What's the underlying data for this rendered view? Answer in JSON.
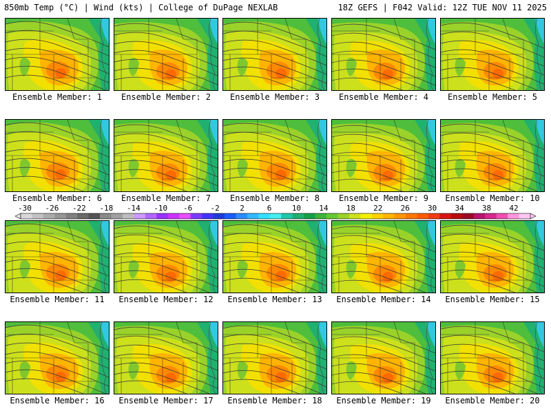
{
  "header": {
    "title_left": "850mb Temp (°C) | Wind (kts) | College of DuPage NEXLAB",
    "title_right": "18Z GEFS | F042 Valid: 12Z TUE NOV 11 2025"
  },
  "panel_label_prefix": "Ensemble Member: ",
  "members": [
    "1",
    "2",
    "3",
    "4",
    "5",
    "6",
    "7",
    "8",
    "9",
    "10",
    "11",
    "12",
    "13",
    "14",
    "15",
    "16",
    "17",
    "18",
    "19",
    "20"
  ],
  "colorbar": {
    "ticks": [
      "-30",
      "-26",
      "-22",
      "-18",
      "-14",
      "-10",
      "-6",
      "-2",
      "2",
      "6",
      "10",
      "14",
      "18",
      "22",
      "26",
      "30",
      "34",
      "38",
      "42"
    ],
    "colors": [
      "#d8d8d8",
      "#c2c2c2",
      "#acacac",
      "#969696",
      "#808080",
      "#6a6a6a",
      "#545454",
      "#8a8a8a",
      "#a0a0a0",
      "#bdbdbd",
      "#cc99ff",
      "#b266ff",
      "#9933ff",
      "#cc33ff",
      "#e84cff",
      "#7a3cff",
      "#4433ff",
      "#1f3cd6",
      "#1a5cff",
      "#2d8cff",
      "#33b8ff",
      "#33e0ff",
      "#45eff0",
      "#20c8a8",
      "#1fb070",
      "#16a048",
      "#3cb43c",
      "#66c832",
      "#9ad22a",
      "#cce01c",
      "#f2f000",
      "#ffd200",
      "#ffb400",
      "#ff9600",
      "#ff7800",
      "#ff5a00",
      "#f03c14",
      "#d81414",
      "#b80c0c",
      "#9c0a28",
      "#b8146e",
      "#d8288c",
      "#f050b0",
      "#ff96dc",
      "#ffc8f0"
    ]
  }
}
